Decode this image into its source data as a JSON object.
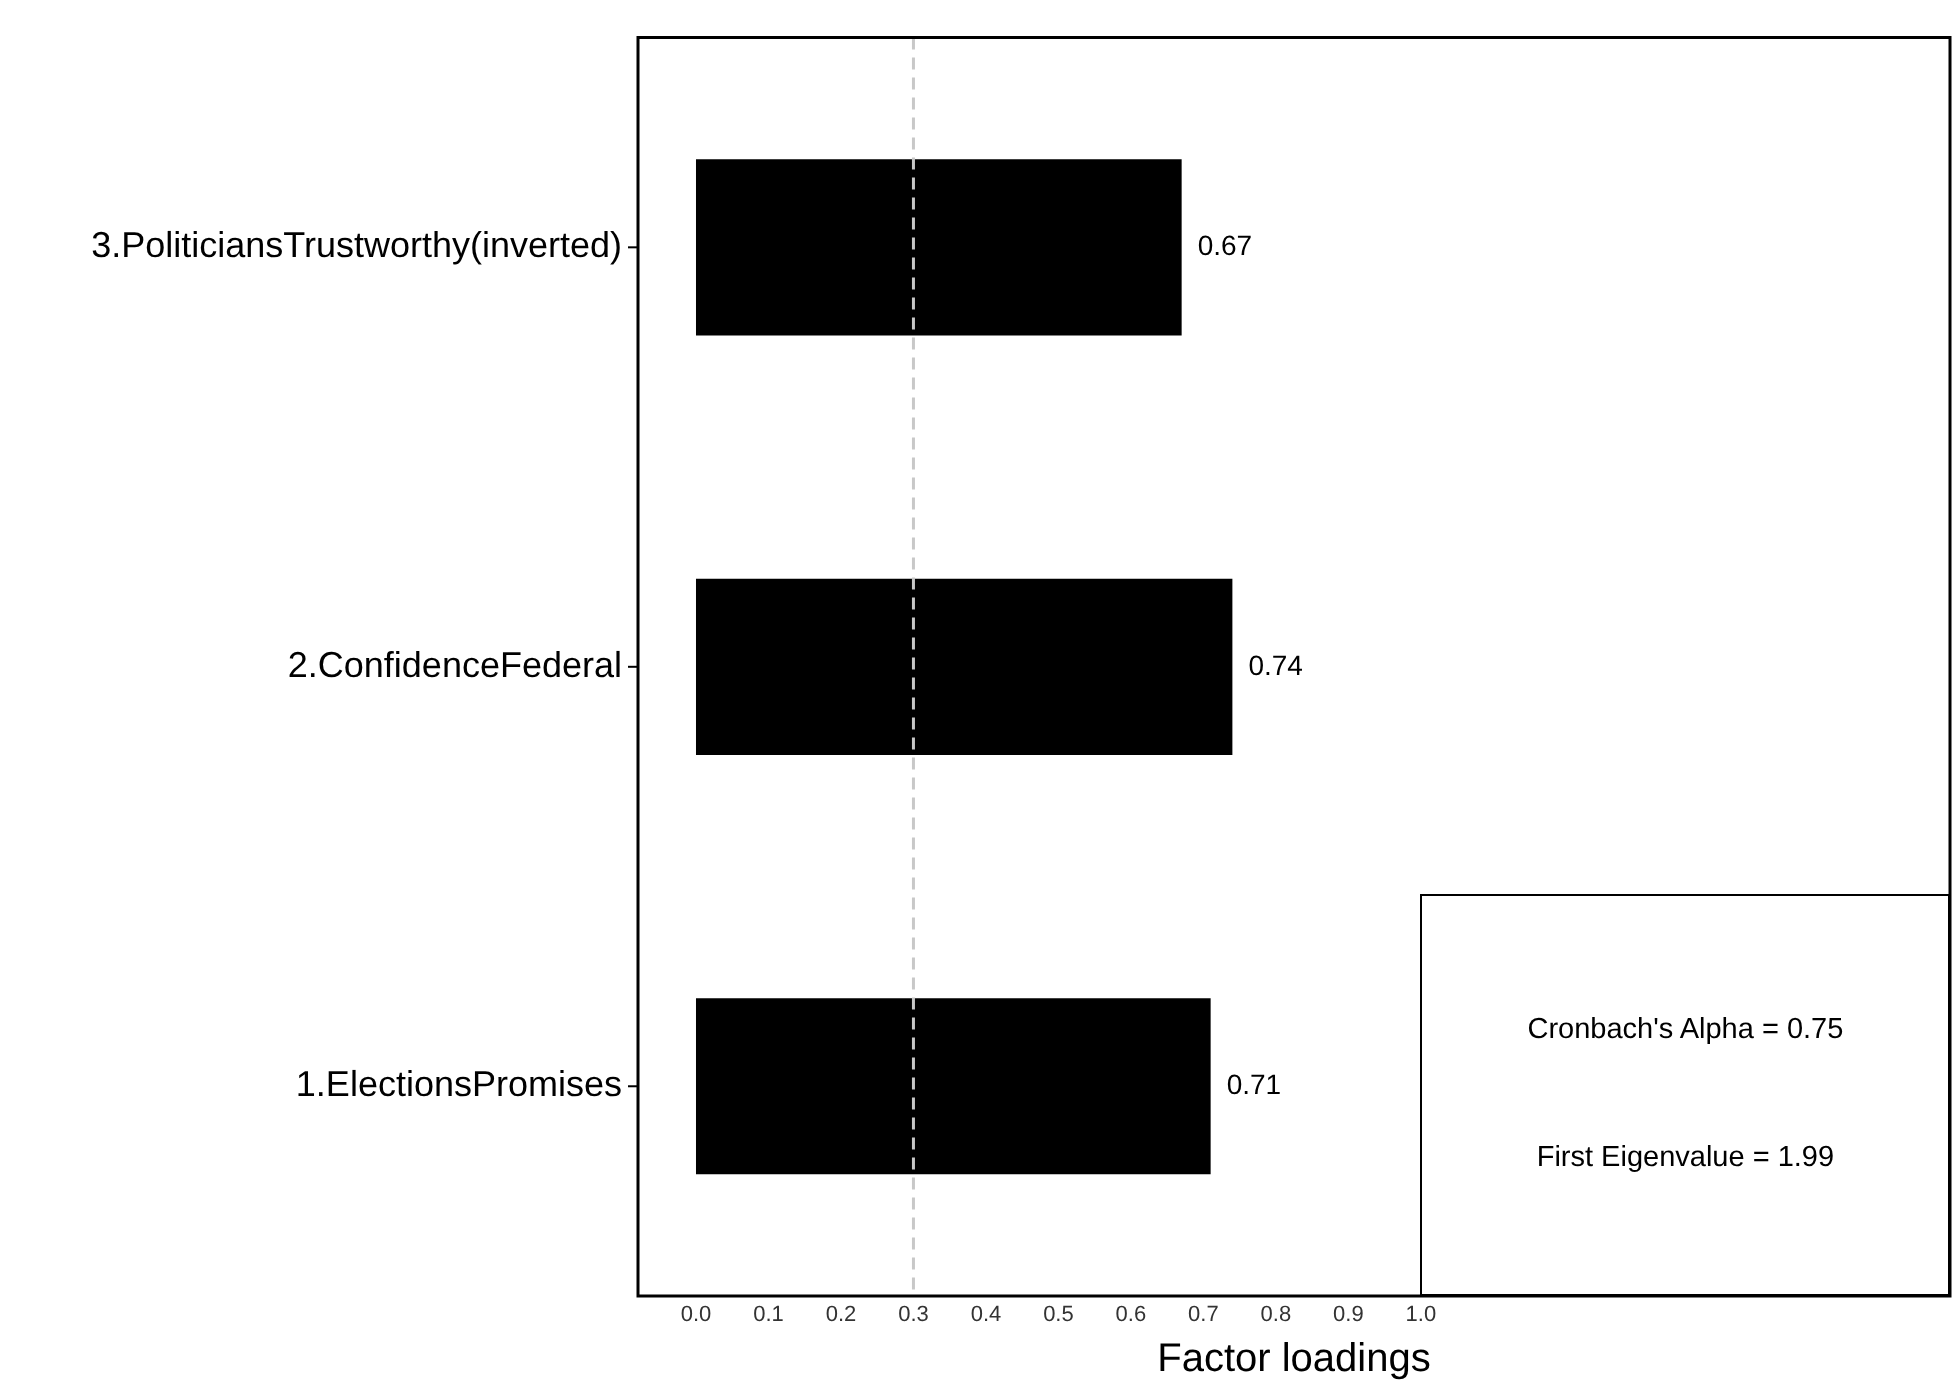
{
  "chart_data": {
    "type": "bar",
    "orientation": "horizontal",
    "xlabel": "Factor loadings",
    "categories": [
      "3.PoliticiansTrustworthy(inverted)",
      "2.ConfidenceFederal",
      "1.ElectionsPromises"
    ],
    "values": [
      0.67,
      0.74,
      0.71
    ],
    "color": "#000000",
    "data_labels": true,
    "xlim": [
      -0.08,
      1.73
    ],
    "xticks": [
      {
        "value": 0,
        "label": "0.0"
      },
      0.1,
      0.2,
      0.3,
      0.4,
      0.5,
      0.6,
      0.7,
      0.8,
      0.9,
      {
        "value": 1,
        "label": "1.0"
      }
    ],
    "ref_lines": [
      {
        "axis": "x",
        "value": 0.3,
        "color": "#c8c8c8",
        "line_style": "dashed"
      }
    ],
    "annotations": [
      "Cronbach's Alpha = 0.75",
      "First Eigenvalue = 1.99"
    ],
    "grid": false,
    "legend": false
  }
}
